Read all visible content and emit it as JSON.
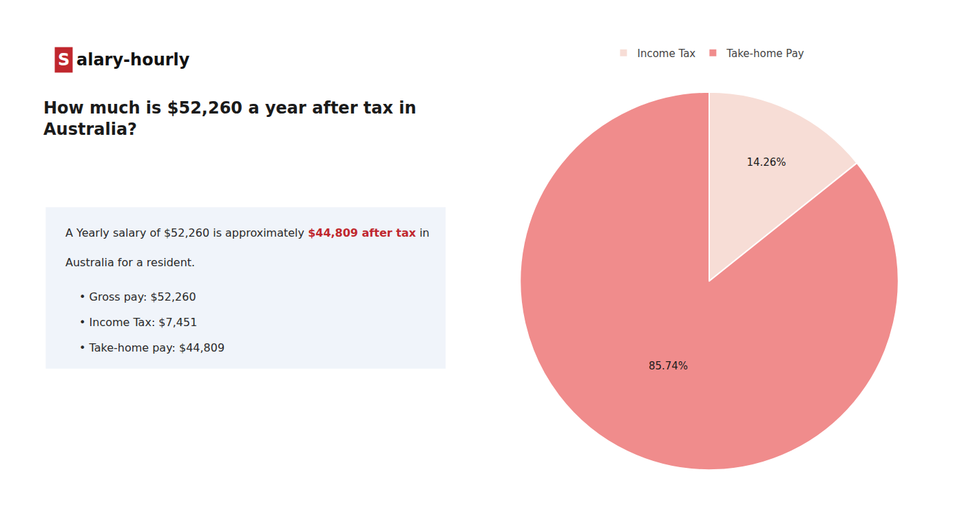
{
  "chart_data": {
    "type": "pie",
    "title": "How much is $52,260 a year after tax in\nAustralia?",
    "categories": [
      "Income Tax",
      "Take-home Pay"
    ],
    "values": [
      14.26,
      85.74
    ],
    "value_labels": [
      "14.26%",
      "85.74%"
    ],
    "colors": [
      "#f7ddd6",
      "#f08c8c"
    ],
    "data_labels": true,
    "legend": "top",
    "annotations": [
      [
        {
          "text": "S",
          "color": "#c0272d"
        },
        {
          "text": "alary-hourly"
        }
      ],
      [
        {
          "text": "A Yearly salary of $52,260 is approximately "
        },
        {
          "text": "$44,809 after tax",
          "color": "#c0272d"
        },
        {
          "text": " in"
        }
      ],
      [
        {
          "text": "Australia for a resident."
        }
      ],
      [
        {
          "text": "• Gross pay: $52,260"
        }
      ],
      [
        {
          "text": "• Income Tax: $7,451"
        }
      ],
      [
        {
          "text": "• Take-home pay: $44,809"
        }
      ]
    ]
  }
}
